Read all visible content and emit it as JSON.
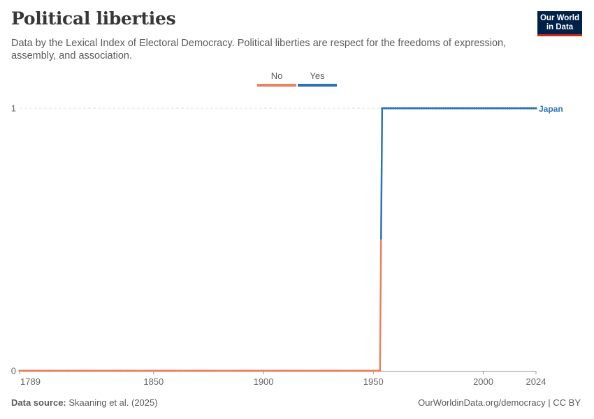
{
  "header": {
    "title": "Political liberties",
    "subtitle": "Data by the Lexical Index of Electoral Democracy. Political liberties are respect for the freedoms of expression, assembly, and association.",
    "logo_line1": "Our World",
    "logo_line2": "in Data"
  },
  "footer": {
    "source_label": "Data source:",
    "source_text": "Skaaning et al. (2025)",
    "link_text": "OurWorldinData.org/democracy | CC BY"
  },
  "colors": {
    "no": "#e8825f",
    "yes": "#2b74b3",
    "grid": "#dddddd",
    "axis": "#666666"
  },
  "chart_data": {
    "type": "line",
    "title": "Political liberties",
    "xlabel": "",
    "ylabel": "",
    "xlim": [
      1789,
      2024
    ],
    "ylim": [
      0,
      1
    ],
    "x_ticks": [
      1789,
      1850,
      1900,
      1950,
      2000,
      2024
    ],
    "y_ticks": [
      0,
      1
    ],
    "grid": "horizontal dashed",
    "legend": {
      "placement": "top-center",
      "entries": [
        {
          "label": "No",
          "color": "#e8825f"
        },
        {
          "label": "Yes",
          "color": "#2b74b3"
        }
      ]
    },
    "series": [
      {
        "name": "Japan",
        "segments": [
          {
            "category": "No",
            "x": [
              1789,
              1953
            ],
            "y": [
              0,
              0
            ]
          },
          {
            "category": "Yes",
            "x": [
              1954,
              2024
            ],
            "y": [
              1,
              1
            ]
          }
        ]
      }
    ]
  }
}
